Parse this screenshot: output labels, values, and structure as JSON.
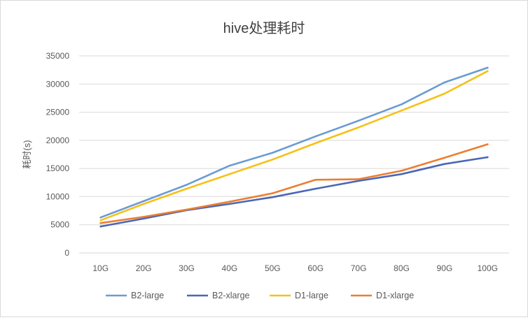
{
  "chart_data": {
    "type": "line",
    "title": "hive处理耗时",
    "xlabel": "",
    "ylabel": "耗时(s)",
    "categories": [
      "10G",
      "20G",
      "30G",
      "40G",
      "50G",
      "60G",
      "70G",
      "80G",
      "90G",
      "100G"
    ],
    "ylim": [
      0,
      35000
    ],
    "yticks": [
      "0",
      "5000",
      "10000",
      "15000",
      "20000",
      "25000",
      "30000",
      "35000"
    ],
    "grid": true,
    "legend_position": "bottom",
    "series": [
      {
        "name": "B2-large",
        "color": "#6A9BD3",
        "values": [
          6300,
          9200,
          12100,
          15500,
          17800,
          20700,
          23500,
          26400,
          30300,
          32900
        ]
      },
      {
        "name": "B2-xlarge",
        "color": "#4A67B6",
        "values": [
          4700,
          6100,
          7600,
          8700,
          9900,
          11400,
          12800,
          14000,
          15800,
          17000
        ]
      },
      {
        "name": "D1-large",
        "color": "#F5C117",
        "values": [
          5800,
          8700,
          11400,
          14000,
          16600,
          19500,
          22300,
          25300,
          28300,
          32300
        ]
      },
      {
        "name": "D1-xlarge",
        "color": "#EB7E32",
        "values": [
          5300,
          6400,
          7700,
          9100,
          10600,
          13000,
          13100,
          14600,
          16900,
          19300
        ]
      }
    ]
  }
}
